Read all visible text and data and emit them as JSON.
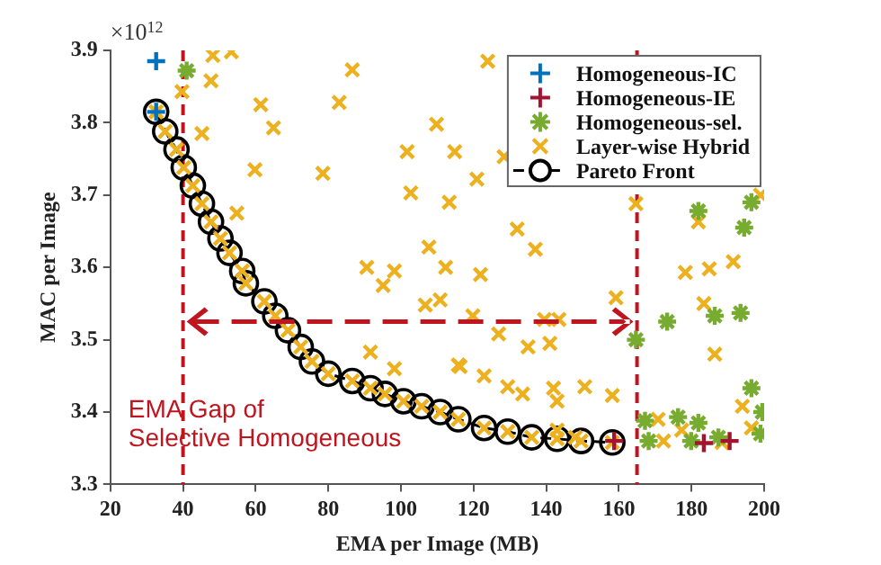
{
  "chart_data": {
    "type": "scatter",
    "xlabel": "EMA per Image (MB)",
    "ylabel": "MAC per Image",
    "xlim": [
      20,
      200
    ],
    "xticks": [
      20,
      40,
      60,
      80,
      100,
      120,
      140,
      160,
      180,
      200
    ],
    "ylim": [
      3.3,
      3.9
    ],
    "yticks": [
      3.3,
      3.4,
      3.5,
      3.6,
      3.7,
      3.8,
      3.9
    ],
    "grid": false,
    "legend": "top right",
    "annotations": [
      "×10$^{12}$",
      "EMA Gap of\nSelective Homogeneous"
    ],
    "ref_lines": [
      {
        "axis": "x",
        "value": 40,
        "label": null,
        "color": "#c0141e",
        "line_style": "dashed"
      },
      {
        "axis": "x",
        "value": 165,
        "label": null,
        "color": "#c0141e",
        "line_style": "dashed"
      }
    ],
    "series": [
      {
        "name": "Homogeneous-IC",
        "color": "#0072bd",
        "x": [
          32.6,
          32.6
        ],
        "values": [
          3.885,
          3.815
        ]
      },
      {
        "name": "Homogeneous-IE",
        "color": "#a2142f",
        "x": [
          158.7,
          183.4,
          190.5
        ],
        "values": [
          3.36,
          3.357,
          3.36
        ]
      },
      {
        "name": "Homogeneous-sel.",
        "color": "#77ac30",
        "x": [
          41,
          164.7,
          173.3,
          186.4,
          193.5,
          196.5,
          199.5,
          199,
          167.2,
          168.2,
          176.3,
          181.9,
          179.9,
          187.4,
          181.9,
          196.5,
          194.5
        ],
        "values": [
          3.872,
          3.5,
          3.525,
          3.533,
          3.537,
          3.433,
          3.4,
          3.37,
          3.388,
          3.36,
          3.393,
          3.385,
          3.36,
          3.365,
          3.678,
          3.69,
          3.655
        ]
      },
      {
        "name": "Layer-wise Hybrid",
        "color": "#edb120",
        "x": [
          39.7,
          48.2,
          53.3,
          47.7,
          86.6,
          61.4,
          83,
          64.9,
          45.2,
          59.8,
          78.5,
          54.8,
          101.7,
          114.8,
          109.8,
          102.7,
          113.3,
          107.7,
          112.3,
          90.6,
          98.2,
          95.1,
          106.7,
          110.8,
          91.6,
          98.2,
          115.8,
          123.9,
          120.9,
          128.4,
          132,
          137,
          121.9,
          164.7,
          181.9,
          199,
          178.3,
          184.9,
          191.5,
          119.8,
          139.5,
          143.5,
          159.2,
          126.9,
          135,
          141,
          116.3,
          122.9,
          129.4,
          133.5,
          142,
          143,
          150.6,
          158.2,
          183.4,
          186.4,
          194,
          196.5,
          172.3,
          177.3,
          188.4,
          170.8,
          143,
          148,
          32.6,
          35.1,
          38.2,
          40.2,
          42.7,
          45.2,
          47.7,
          50.3,
          52.8,
          56.3,
          57.3,
          62.4,
          65.4,
          68.9,
          72.4,
          75.5,
          80,
          86.6,
          91.6,
          95.6,
          100.7,
          105.7,
          110.8,
          115.8,
          122.9,
          129.4,
          136,
          143,
          149.6,
          158.2
        ],
        "values": [
          3.843,
          3.893,
          3.898,
          3.858,
          3.873,
          3.825,
          3.828,
          3.793,
          3.785,
          3.735,
          3.73,
          3.675,
          3.76,
          3.76,
          3.798,
          3.703,
          3.69,
          3.628,
          3.6,
          3.6,
          3.595,
          3.575,
          3.548,
          3.555,
          3.483,
          3.46,
          3.465,
          3.885,
          3.722,
          3.753,
          3.653,
          3.625,
          3.59,
          3.688,
          3.663,
          3.7,
          3.593,
          3.598,
          3.608,
          3.533,
          3.528,
          3.528,
          3.558,
          3.508,
          3.49,
          3.495,
          3.463,
          3.45,
          3.435,
          3.425,
          3.433,
          3.415,
          3.435,
          3.423,
          3.55,
          3.48,
          3.408,
          3.378,
          3.36,
          3.375,
          3.358,
          3.39,
          3.375,
          3.365,
          3.815,
          3.788,
          3.763,
          3.738,
          3.713,
          3.688,
          3.663,
          3.64,
          3.62,
          3.595,
          3.578,
          3.553,
          3.533,
          3.513,
          3.49,
          3.47,
          3.453,
          3.443,
          3.433,
          3.425,
          3.415,
          3.408,
          3.4,
          3.39,
          3.378,
          3.373,
          3.365,
          3.363,
          3.36,
          3.358
        ]
      },
      {
        "name": "Pareto Front",
        "type": "line",
        "color": "#000000",
        "marker": "circle",
        "line_style": "dashed",
        "x": [
          32.6,
          35.1,
          38.2,
          40.2,
          42.7,
          45.2,
          47.7,
          50.3,
          52.8,
          56.3,
          57.3,
          62.4,
          65.4,
          68.9,
          72.4,
          75.5,
          80,
          86.6,
          91.6,
          95.6,
          100.7,
          105.7,
          110.8,
          115.8,
          122.9,
          129.4,
          136,
          143,
          149.6,
          158.2
        ],
        "values": [
          3.815,
          3.788,
          3.763,
          3.738,
          3.713,
          3.688,
          3.663,
          3.64,
          3.62,
          3.595,
          3.578,
          3.553,
          3.533,
          3.513,
          3.49,
          3.47,
          3.453,
          3.443,
          3.433,
          3.425,
          3.415,
          3.408,
          3.4,
          3.39,
          3.378,
          3.373,
          3.365,
          3.363,
          3.36,
          3.358
        ]
      }
    ]
  }
}
